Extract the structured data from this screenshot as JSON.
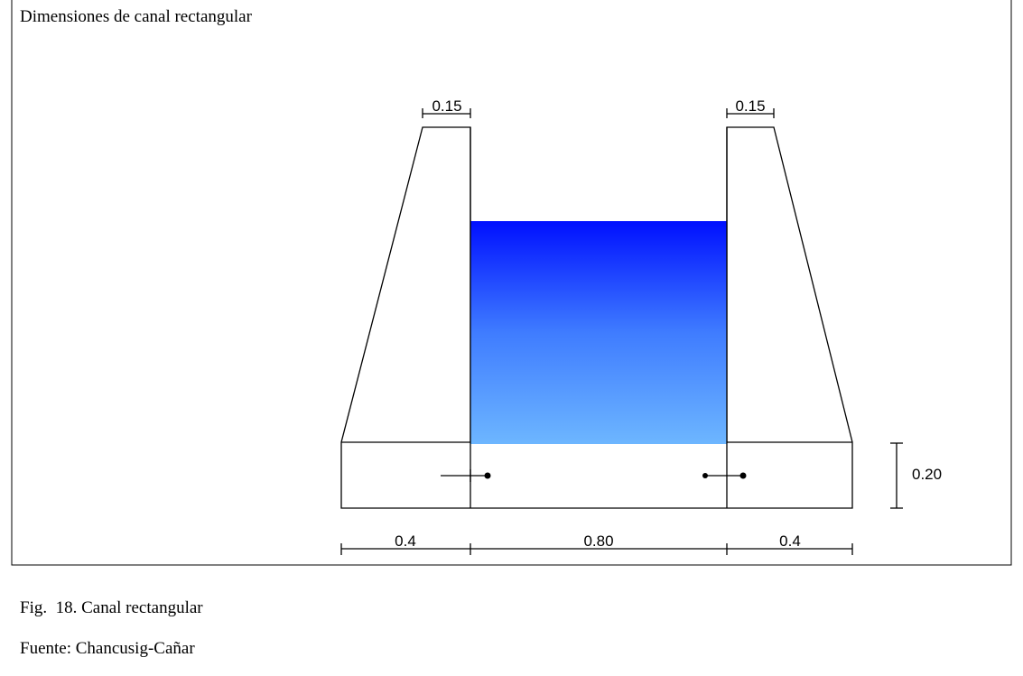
{
  "header": {
    "title": "Dimensiones de canal rectangular"
  },
  "dimensions": {
    "left_wall_top": "0.15",
    "right_wall_top": "0.15",
    "slab_height": "0.20",
    "left_base": "0.4",
    "channel_width": "0.80",
    "right_base": "0.4"
  },
  "caption": {
    "figure": "Fig.  18. Canal rectangular",
    "source": "Fuente: Chancusig-Cañar"
  }
}
